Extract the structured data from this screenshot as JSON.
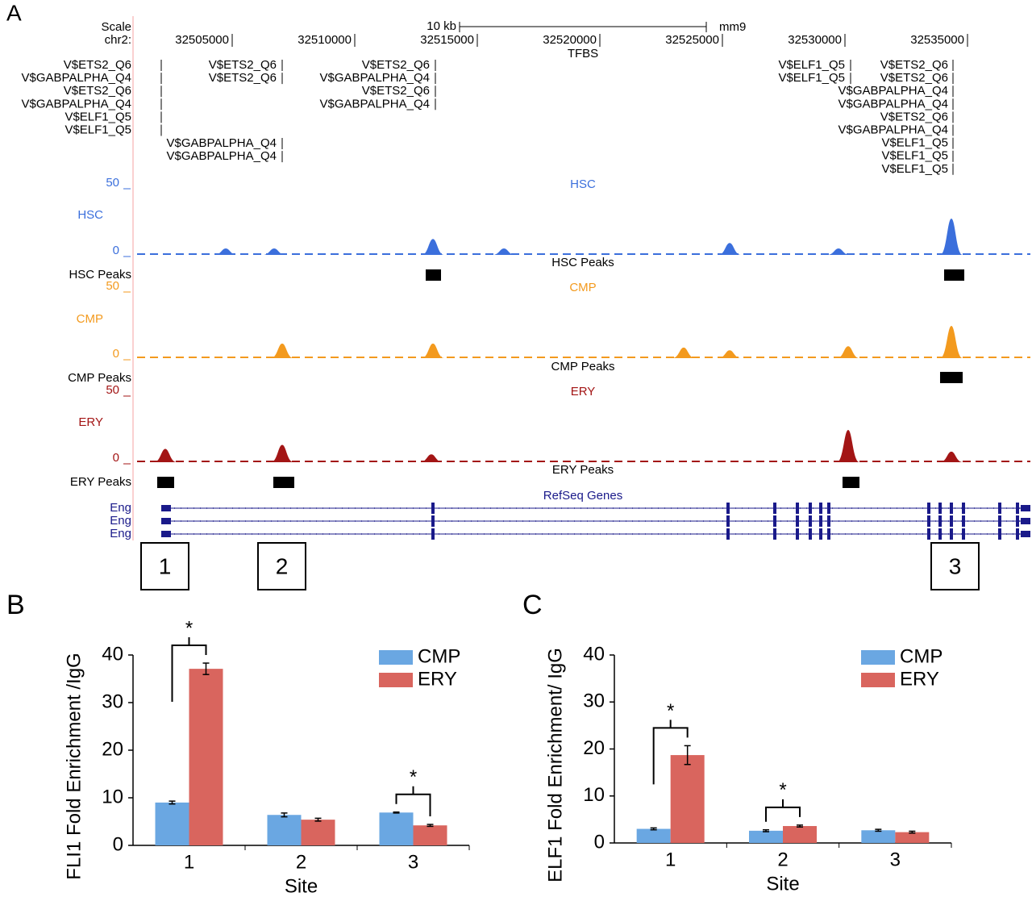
{
  "genome_browser": {
    "panel": "A",
    "scale_label": "Scale",
    "scale_bar": "10 kb",
    "assembly": "mm9",
    "chrom": "chr2:",
    "xlim": [
      32500954,
      32537566
    ],
    "positions": [
      32505000,
      32510000,
      32515000,
      32520000,
      32525000,
      32530000,
      32535000
    ],
    "tfbs_title": "TFBS",
    "tfbs": [
      {
        "labels": [
          "V$ETS2_Q6",
          "V$GABPALPHA_Q4",
          "V$ETS2_Q6",
          "V$GABPALPHA_Q4",
          "V$ELF1_Q5",
          "V$ELF1_Q5"
        ]
      },
      {
        "labels": [
          "V$ETS2_Q6",
          "V$ETS2_Q6"
        ]
      },
      {
        "labels": [
          "V$ETS2_Q6",
          "V$GABPALPHA_Q4",
          "V$ETS2_Q6",
          "V$GABPALPHA_Q4"
        ]
      },
      {
        "labels": [
          "V$GABPALPHA_Q4",
          "V$GABPALPHA_Q4"
        ]
      },
      {
        "labels": [
          "V$ELF1_Q5",
          "V$ELF1_Q5"
        ]
      },
      {
        "labels": [
          "V$ETS2_Q6",
          "V$ETS2_Q6",
          "V$GABPALPHA_Q4",
          "V$GABPALPHA_Q4",
          "V$ETS2_Q6",
          "V$GABPALPHA_Q4",
          "V$ELF1_Q5",
          "V$ELF1_Q5",
          "V$ELF1_Q5"
        ]
      }
    ],
    "tracks": [
      {
        "name": "HSC",
        "color": "#3b6fdc",
        "ylim": [
          0,
          50
        ],
        "yticks": [
          0,
          50
        ],
        "signal_peaks": [
          {
            "pos": 32504737,
            "height": 3
          },
          {
            "pos": 32506711,
            "height": 3
          },
          {
            "pos": 32513191,
            "height": 10
          },
          {
            "pos": 32516086,
            "height": 3
          },
          {
            "pos": 32525296,
            "height": 7
          },
          {
            "pos": 32529737,
            "height": 3
          },
          {
            "pos": 32534342,
            "height": 25
          }
        ],
        "peaks_name": "HSC Peaks",
        "called_peaks": [
          [
            32512895,
            32513520
          ],
          [
            32534046,
            32534869
          ]
        ]
      },
      {
        "name": "CMP",
        "color": "#f39a1e",
        "ylim": [
          0,
          50
        ],
        "yticks": [
          0,
          50
        ],
        "signal_peaks": [
          {
            "pos": 32507040,
            "height": 9
          },
          {
            "pos": 32513191,
            "height": 9
          },
          {
            "pos": 32523421,
            "height": 6
          },
          {
            "pos": 32525296,
            "height": 4
          },
          {
            "pos": 32530131,
            "height": 7
          },
          {
            "pos": 32534342,
            "height": 22
          }
        ],
        "peaks_name": "CMP Peaks",
        "called_peaks": [
          [
            32533881,
            32534803
          ]
        ]
      },
      {
        "name": "ERY",
        "color": "#a31515",
        "ylim": [
          0,
          50
        ],
        "yticks": [
          0,
          50
        ],
        "signal_peaks": [
          {
            "pos": 32502270,
            "height": 8
          },
          {
            "pos": 32507040,
            "height": 11
          },
          {
            "pos": 32513125,
            "height": 4
          },
          {
            "pos": 32530131,
            "height": 22
          },
          {
            "pos": 32534342,
            "height": 6
          }
        ],
        "peaks_name": "ERY Peaks",
        "called_peaks": [
          [
            32501941,
            32502632
          ],
          [
            32506678,
            32507533
          ],
          [
            32529901,
            32530592
          ]
        ]
      }
    ],
    "genes_title": "RefSeq Genes",
    "genes": [
      "Eng",
      "Eng",
      "Eng"
    ],
    "sites": [
      "1",
      "2",
      "3"
    ]
  },
  "chart_data": [
    {
      "type": "bar",
      "panel": "B",
      "y_label": "FLI1 Fold Enrichment /IgG",
      "x_label": "Site",
      "categories": [
        "1",
        "2",
        "3"
      ],
      "series": [
        {
          "name": "CMP",
          "color": "#6aa7e2",
          "values": [
            9.0,
            6.4,
            6.9
          ],
          "errors": [
            0.3,
            0.4,
            0.1
          ]
        },
        {
          "name": "ERY",
          "color": "#d9655e",
          "values": [
            37.1,
            5.4,
            4.2
          ],
          "errors": [
            1.2,
            0.3,
            0.2
          ]
        }
      ],
      "ylim": [
        0,
        40
      ],
      "yticks": [
        0,
        10,
        20,
        30,
        40
      ],
      "legend": "upper right",
      "annotations": [
        {
          "category": "1",
          "text": "*"
        },
        {
          "category": "3",
          "text": "*"
        }
      ]
    },
    {
      "type": "bar",
      "panel": "C",
      "y_label": "ELF1 Fold Enrichment/ IgG",
      "x_label": "Site",
      "categories": [
        "1",
        "2",
        "3"
      ],
      "series": [
        {
          "name": "CMP",
          "color": "#6aa7e2",
          "values": [
            3.0,
            2.6,
            2.7
          ],
          "errors": [
            0.2,
            0.2,
            0.2
          ]
        },
        {
          "name": "ERY",
          "color": "#d9655e",
          "values": [
            18.7,
            3.6,
            2.3
          ],
          "errors": [
            2.0,
            0.2,
            0.2
          ]
        }
      ],
      "ylim": [
        0,
        40
      ],
      "yticks": [
        0,
        10,
        20,
        30,
        40
      ],
      "legend": "upper right",
      "annotations": [
        {
          "category": "1",
          "text": "*"
        },
        {
          "category": "2",
          "text": "*"
        }
      ]
    }
  ]
}
